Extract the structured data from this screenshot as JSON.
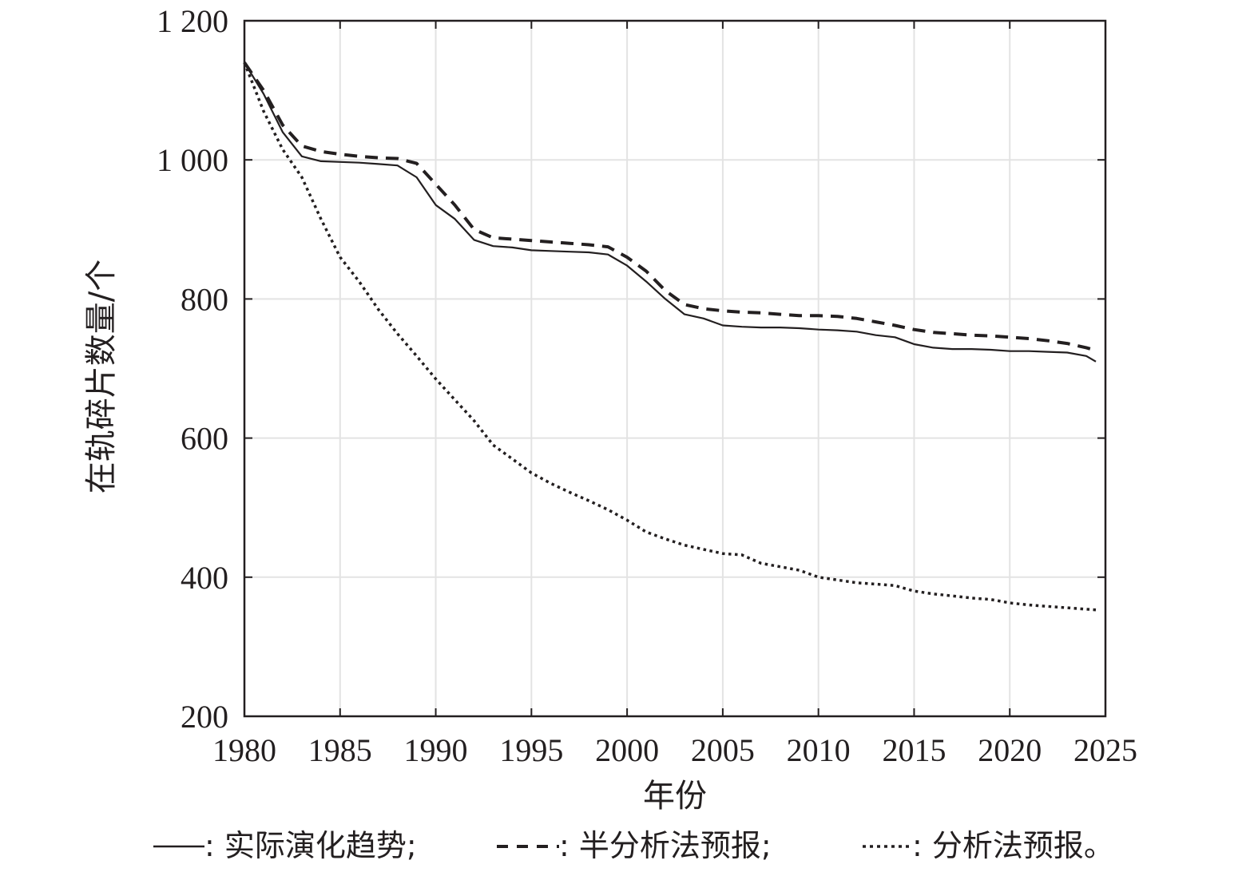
{
  "chart_data": {
    "type": "line",
    "title": "",
    "xlabel": "年份",
    "ylabel": "在轨碎片数量/个",
    "xlim": [
      1980,
      2025
    ],
    "ylim": [
      200,
      1200
    ],
    "grid": true,
    "x_ticks": [
      1980,
      1985,
      1990,
      1995,
      2000,
      2005,
      2010,
      2015,
      2020,
      2025
    ],
    "x_tick_labels": [
      "1980",
      "1985",
      "1990",
      "1995",
      "2000",
      "2005",
      "2010",
      "2015",
      "2020",
      "2025"
    ],
    "y_ticks": [
      200,
      400,
      600,
      800,
      1000,
      1200
    ],
    "y_tick_labels": [
      "200",
      "400",
      "600",
      "800",
      "1 000",
      "1 200"
    ],
    "legend": {
      "placement": "bottom",
      "items": [
        {
          "symbol": "—",
          "text": ": 实际演化趋势;"
        },
        {
          "symbol": "- -",
          "text": ": 半分析法预报;"
        },
        {
          "symbol": "·····",
          "text": ": 分析法预报。"
        }
      ]
    },
    "series": [
      {
        "name": "实际演化趋势",
        "style": "solid",
        "color": "#231f20",
        "x": [
          1980,
          1981,
          1982,
          1983,
          1984,
          1985,
          1986,
          1987,
          1988,
          1989,
          1990,
          1991,
          1992,
          1993,
          1994,
          1995,
          1996,
          1997,
          1998,
          1999,
          2000,
          2001,
          2002,
          2003,
          2004,
          2005,
          2006,
          2007,
          2008,
          2009,
          2010,
          2011,
          2012,
          2013,
          2014,
          2015,
          2016,
          2017,
          2018,
          2019,
          2020,
          2021,
          2022,
          2023,
          2024,
          2024.5
        ],
        "y": [
          1140,
          1095,
          1040,
          1005,
          998,
          997,
          996,
          994,
          992,
          975,
          935,
          915,
          885,
          876,
          874,
          870,
          869,
          868,
          867,
          864,
          848,
          825,
          800,
          778,
          772,
          762,
          760,
          759,
          759,
          758,
          756,
          755,
          753,
          748,
          745,
          735,
          730,
          728,
          728,
          727,
          725,
          725,
          724,
          723,
          718,
          710
        ]
      },
      {
        "name": "半分析法预报",
        "style": "dashed",
        "color": "#231f20",
        "x": [
          1980,
          1981,
          1982,
          1983,
          1984,
          1985,
          1986,
          1987,
          1988,
          1989,
          1990,
          1991,
          1992,
          1993,
          1994,
          1995,
          1996,
          1997,
          1998,
          1999,
          2000,
          2001,
          2002,
          2003,
          2004,
          2005,
          2006,
          2007,
          2008,
          2009,
          2010,
          2011,
          2012,
          2013,
          2014,
          2015,
          2016,
          2017,
          2018,
          2019,
          2020,
          2021,
          2022,
          2023,
          2024,
          2024.5
        ],
        "y": [
          1140,
          1100,
          1050,
          1020,
          1012,
          1008,
          1005,
          1003,
          1002,
          995,
          965,
          935,
          900,
          888,
          886,
          884,
          882,
          880,
          878,
          875,
          860,
          840,
          812,
          792,
          786,
          783,
          781,
          780,
          778,
          776,
          776,
          775,
          772,
          767,
          762,
          756,
          752,
          750,
          748,
          747,
          745,
          743,
          740,
          736,
          730,
          726
        ]
      },
      {
        "name": "分析法预报",
        "style": "dotted",
        "color": "#231f20",
        "x": [
          1980,
          1981,
          1982,
          1983,
          1984,
          1985,
          1986,
          1987,
          1988,
          1989,
          1990,
          1991,
          1992,
          1993,
          1994,
          1995,
          1996,
          1997,
          1998,
          1999,
          2000,
          2001,
          2002,
          2003,
          2004,
          2005,
          2006,
          2007,
          2008,
          2009,
          2010,
          2011,
          2012,
          2013,
          2014,
          2015,
          2016,
          2017,
          2018,
          2019,
          2020,
          2021,
          2022,
          2023,
          2024,
          2024.5
        ],
        "y": [
          1140,
          1070,
          1015,
          975,
          915,
          860,
          825,
          785,
          750,
          718,
          685,
          655,
          625,
          590,
          570,
          550,
          535,
          522,
          510,
          497,
          482,
          465,
          455,
          446,
          440,
          434,
          432,
          420,
          415,
          410,
          400,
          396,
          392,
          390,
          388,
          380,
          376,
          373,
          370,
          368,
          363,
          360,
          358,
          356,
          354,
          353
        ]
      }
    ]
  }
}
